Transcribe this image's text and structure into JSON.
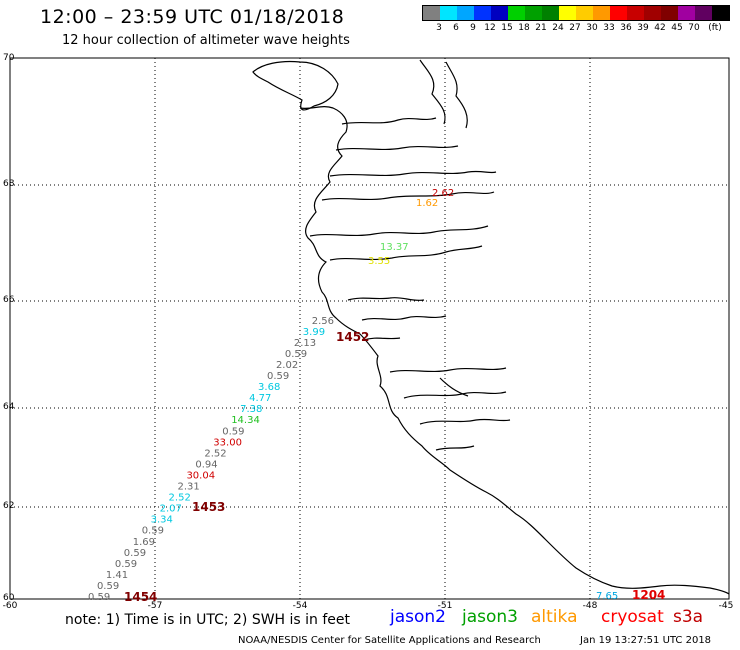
{
  "header": {
    "title": "12:00 – 23:59 UTC 01/18/2018",
    "subtitle": "12 hour collection of altimeter wave heights"
  },
  "color_scale": {
    "colors": [
      "#808080",
      "#00e5ff",
      "#00a6ff",
      "#0033ff",
      "#0000c0",
      "#00d000",
      "#00a000",
      "#008000",
      "#ffff00",
      "#ffcc00",
      "#ff9900",
      "#ff0000",
      "#c80000",
      "#a00000",
      "#800000",
      "#a000a0",
      "#600060",
      "#000000"
    ],
    "labels": [
      "3",
      "6",
      "9",
      "12",
      "15",
      "18",
      "21",
      "24",
      "27",
      "30",
      "33",
      "36",
      "39",
      "42",
      "45",
      "70",
      "(ft)"
    ]
  },
  "axes": {
    "lat_labels": [
      "70",
      "68",
      "66",
      "64",
      "62",
      "60"
    ],
    "lon_labels": [
      "-60",
      "-57",
      "-54",
      "-51",
      "-48",
      "-45"
    ]
  },
  "track_a": [
    {
      "v": "0.59",
      "c": "#666666"
    },
    {
      "v": "0.59",
      "c": "#666666"
    },
    {
      "v": "1.41",
      "c": "#666666"
    },
    {
      "v": "0.59",
      "c": "#666666"
    },
    {
      "v": "0.59",
      "c": "#666666"
    },
    {
      "v": "1.69",
      "c": "#666666"
    },
    {
      "v": "0.59",
      "c": "#666666"
    },
    {
      "v": "3.34",
      "c": "#00c8e0"
    },
    {
      "v": "2.07",
      "c": "#00c8e0"
    },
    {
      "v": "2.52",
      "c": "#00c8e0"
    },
    {
      "v": "2.31",
      "c": "#666666"
    },
    {
      "v": "30.04",
      "c": "#d00000"
    },
    {
      "v": "0.94",
      "c": "#666666"
    },
    {
      "v": "2.52",
      "c": "#666666"
    },
    {
      "v": "33.00",
      "c": "#d00000"
    },
    {
      "v": "0.59",
      "c": "#666666"
    },
    {
      "v": "14.34",
      "c": "#20c020"
    },
    {
      "v": "7.38",
      "c": "#00c8e0"
    },
    {
      "v": "4.77",
      "c": "#00c8e0"
    },
    {
      "v": "3.68",
      "c": "#00c8e0"
    },
    {
      "v": "0.59",
      "c": "#666666"
    },
    {
      "v": "2.02",
      "c": "#666666"
    },
    {
      "v": "0.59",
      "c": "#666666"
    },
    {
      "v": "2.13",
      "c": "#666666"
    },
    {
      "v": "3.99",
      "c": "#00c8e0"
    },
    {
      "v": "2.56",
      "c": "#666666"
    }
  ],
  "track_b": [
    {
      "v": "13.37",
      "c": "#60e060"
    },
    {
      "v": "3.55",
      "c": "#e0e000"
    }
  ],
  "track_c": [
    {
      "v": "2.62",
      "c": "#c00000"
    },
    {
      "v": "1.62",
      "c": "#ff9900"
    }
  ],
  "time_labels": {
    "t1454": "1454",
    "t1453": "1453",
    "t1452": "1452",
    "t1204": "1204"
  },
  "extra_value": {
    "v": "7.65",
    "c": "#00a6e0"
  },
  "footer": {
    "note": "note:  1) Time is in UTC;  2) SWH is in feet",
    "legend": [
      {
        "name": "jason2",
        "color": "#0000ff"
      },
      {
        "name": "jason3",
        "color": "#00a000"
      },
      {
        "name": "altika",
        "color": "#ff9900"
      },
      {
        "name": "cryosat",
        "color": "#ff0000"
      },
      {
        "name": "s3a",
        "color": "#c00000"
      }
    ],
    "credit": "NOAA/NESDIS Center for Satellite Applications and Research",
    "timestamp": "Jan 19 13:27:51 UTC 2018"
  }
}
